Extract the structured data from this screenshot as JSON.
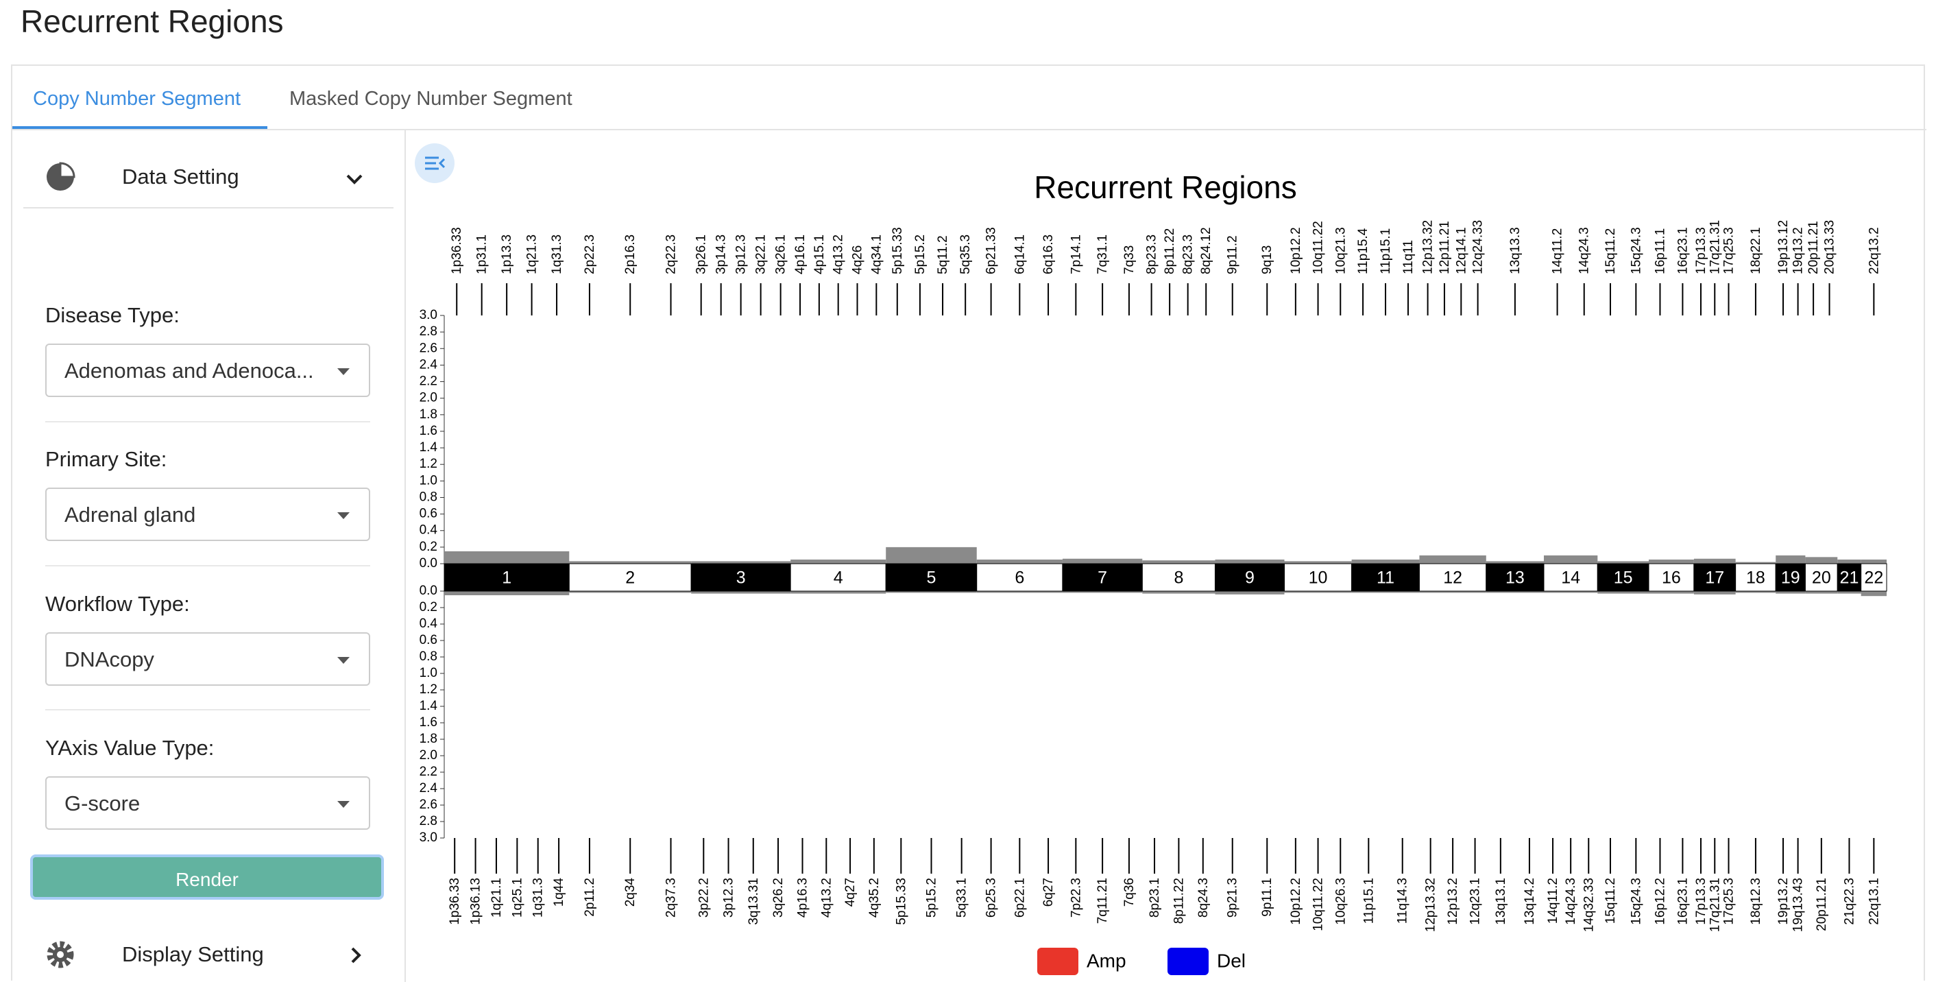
{
  "page_title": "Recurrent Regions",
  "tabs": [
    "Copy Number Segment",
    "Masked Copy Number Segment"
  ],
  "sidebar": {
    "data_setting": "Data Setting",
    "fields": [
      {
        "label": "Disease Type:",
        "value": "Adenomas and Adenoca..."
      },
      {
        "label": "Primary Site:",
        "value": "Adrenal gland"
      },
      {
        "label": "Workflow Type:",
        "value": "DNAcopy"
      },
      {
        "label": "YAxis Value Type:",
        "value": "G-score"
      }
    ],
    "render": "Render",
    "display_setting": "Display Setting"
  },
  "chart_data": {
    "type": "genome",
    "title": "Recurrent Regions",
    "categories": [
      "1",
      "2",
      "3",
      "4",
      "5",
      "6",
      "7",
      "8",
      "9",
      "10",
      "11",
      "12",
      "13",
      "14",
      "15",
      "16",
      "17",
      "18",
      "19",
      "20",
      "21",
      "22"
    ],
    "series": [
      {
        "name": "Amp",
        "color": "#e8352a",
        "values": [
          0.15,
          0.03,
          0.03,
          0.05,
          0.2,
          0.05,
          0.06,
          0.04,
          0.05,
          0.03,
          0.05,
          0.1,
          0.03,
          0.1,
          0.03,
          0.05,
          0.06,
          0.02,
          0.1,
          0.08,
          0.05,
          0.05
        ]
      },
      {
        "name": "Del",
        "color": "#0000ee",
        "values": [
          0.05,
          0.02,
          0.03,
          0.03,
          0.02,
          0.02,
          0.02,
          0.03,
          0.04,
          0.02,
          0.02,
          0.02,
          0.02,
          0.02,
          0.03,
          0.03,
          0.04,
          0.02,
          0.03,
          0.03,
          0.03,
          0.06
        ]
      }
    ],
    "profile_color": "#8a8a8a",
    "ylim": [
      0,
      3
    ],
    "yticks": [
      {
        "value": 0,
        "label": "0.0"
      },
      0.2,
      0.4,
      0.6,
      0.8,
      {
        "value": 1,
        "label": "1.0"
      },
      1.2,
      1.4,
      1.6,
      1.8,
      {
        "value": 2,
        "label": "2.0"
      },
      2.2,
      2.4,
      2.6,
      2.8,
      {
        "value": 3,
        "label": "3.0"
      }
    ],
    "amp_regions": [
      "1p36.33",
      "1p31.1",
      "1p13.3",
      "1q21.3",
      "1q31.3",
      "2p22.3",
      "2p16.3",
      "2q22.3",
      "3p26.1",
      "3p14.3",
      "3p12.3",
      "3q22.1",
      "3q26.1",
      "4p16.1",
      "4p15.1",
      "4q13.2",
      "4q26",
      "4q34.1",
      "5p15.33",
      "5p15.2",
      "5q11.2",
      "5q35.3",
      "6p21.33",
      "6q14.1",
      "6q16.3",
      "7p14.1",
      "7q31.1",
      "7q33",
      "8p23.3",
      "8p11.22",
      "8q23.3",
      "8q24.12",
      "9p11.2",
      "9q13",
      "10p12.2",
      "10q11.22",
      "10q21.3",
      "11p15.4",
      "11p15.1",
      "11q11",
      "12p13.32",
      "12p11.21",
      "12q14.1",
      "12q24.33",
      "13q13.3",
      "14q11.2",
      "14q24.3",
      "15q11.2",
      "15q24.3",
      "16p11.1",
      "16q23.1",
      "17p13.3",
      "17q21.31",
      "17q25.3",
      "18q22.1",
      "19p13.12",
      "19q13.2",
      "20p11.21",
      "20q13.33",
      "22q13.2"
    ],
    "del_regions": [
      "1p36.33",
      "1p36.13",
      "1q21.1",
      "1q25.1",
      "1q31.3",
      "1q44",
      "2p11.2",
      "2q34",
      "2q37.3",
      "3p22.2",
      "3p12.3",
      "3q13.31",
      "3q26.2",
      "4p16.3",
      "4q13.2",
      "4q27",
      "4q35.2",
      "5p15.33",
      "5p15.2",
      "5q33.1",
      "6p25.3",
      "6p22.1",
      "6q27",
      "7p22.3",
      "7q11.21",
      "7q36",
      "8p23.1",
      "8p11.22",
      "8q24.3",
      "9p21.3",
      "9p11.1",
      "10p12.2",
      "10q11.22",
      "10q26.3",
      "11p15.1",
      "11q14.3",
      "12p13.32",
      "12p13.2",
      "12q23.1",
      "13q13.1",
      "13q14.2",
      "14q11.2",
      "14q24.3",
      "14q32.33",
      "15q11.2",
      "15q24.3",
      "16p12.2",
      "16q23.1",
      "17p13.3",
      "17q21.31",
      "17q25.3",
      "18q12.3",
      "19p13.2",
      "19q13.43",
      "20p11.21",
      "21q22.3",
      "22q13.1"
    ]
  }
}
